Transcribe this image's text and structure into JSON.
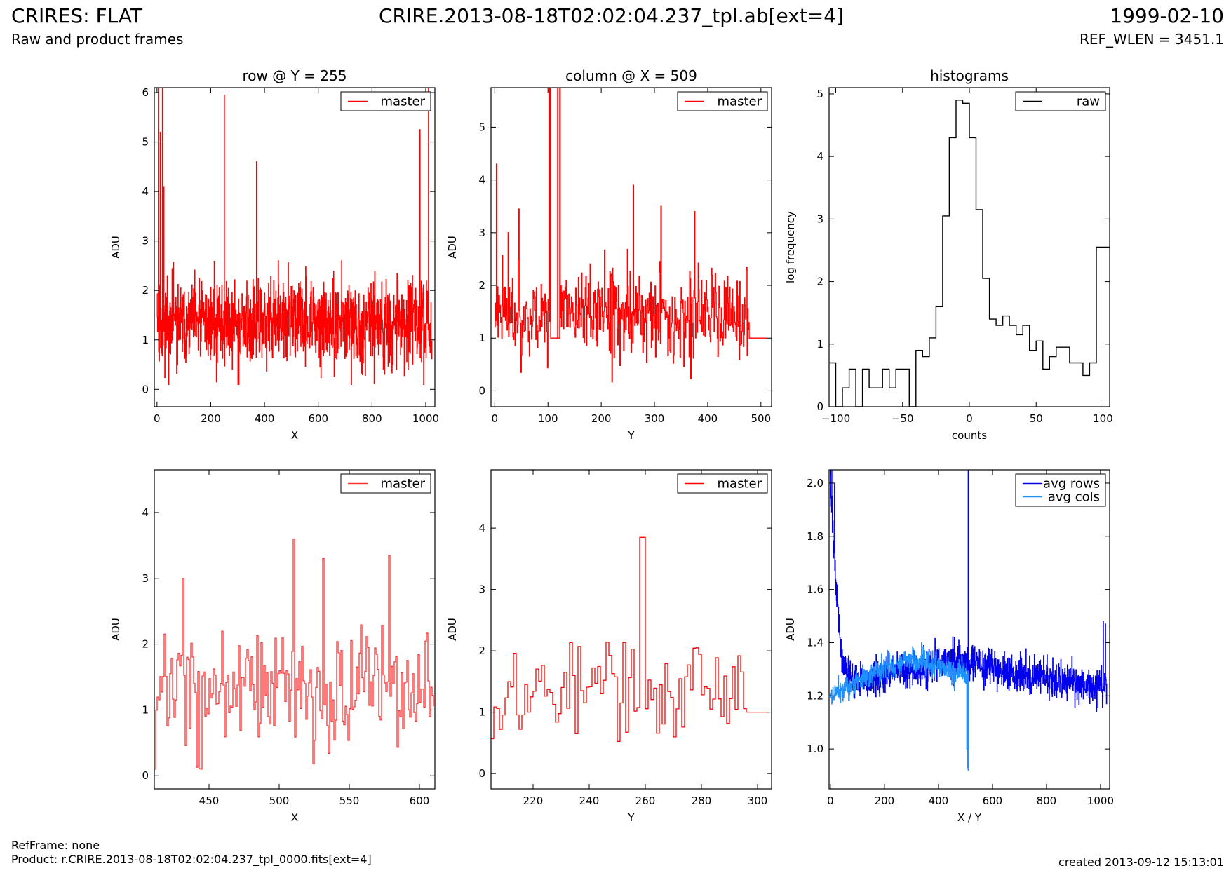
{
  "header": {
    "title_left": "CRIRES: FLAT",
    "title_center": "CRIRE.2013-08-18T02:02:04.237_tpl.ab[ext=4]",
    "title_right": "1999-02-10",
    "subtitle_left": "Raw and product frames",
    "subtitle_right": "REF_WLEN = 3451.1"
  },
  "footer": {
    "refframe": "RefFrame: none",
    "product": "Product: r.CRIRE.2013-08-18T02:02:04.237_tpl_0000.fits[ext=4]",
    "created": "created 2013-09-12 15:13:01"
  },
  "colors": {
    "red": "#ff0000",
    "dark_blue": "#0000ee",
    "light_blue": "#1e90ff",
    "black": "#000000"
  },
  "chart_data": [
    {
      "id": "p1",
      "type": "line",
      "title": "row @ Y = 255",
      "xlabel": "X",
      "ylabel": "ADU",
      "xlim": [
        -10,
        1034
      ],
      "ylim": [
        -0.35,
        6.1
      ],
      "xticks": [
        0,
        200,
        400,
        600,
        800,
        1000
      ],
      "yticks": [
        0,
        1,
        2,
        3,
        4,
        5,
        6
      ],
      "legend": "top-right",
      "series": [
        {
          "name": "master",
          "color": "#ff0000",
          "gen": "noise",
          "n": 1024,
          "x0": 0,
          "dx": 1,
          "base": 1.35,
          "amp": 0.85,
          "min": 0.1,
          "max": 2.6,
          "seed": 11,
          "spikes": [
            [
              5,
              6.1
            ],
            [
              12,
              5.2
            ],
            [
              20,
              6.1
            ],
            [
              25,
              4.1
            ],
            [
              250,
              5.95
            ],
            [
              370,
              4.6
            ],
            [
              978,
              5.25
            ],
            [
              1010,
              6.1
            ]
          ]
        }
      ]
    },
    {
      "id": "p2",
      "type": "line",
      "title": "column @ X = 509",
      "xlabel": "Y",
      "ylabel": "ADU",
      "xlim": [
        -7,
        520
      ],
      "ylim": [
        -0.3,
        5.75
      ],
      "xticks": [
        0,
        100,
        200,
        300,
        400,
        500
      ],
      "yticks": [
        0,
        1,
        2,
        3,
        4,
        5
      ],
      "legend": "top-right",
      "series": [
        {
          "name": "master",
          "color": "#ff0000",
          "gen": "noise",
          "n": 512,
          "x0": 0,
          "dx": 1,
          "base": 1.45,
          "amp": 0.8,
          "min": 0.15,
          "max": 2.8,
          "seed": 23,
          "spikes": [
            [
              3,
              4.3
            ],
            [
              25,
              3.0
            ],
            [
              45,
              3.45
            ],
            [
              102,
              5.75
            ],
            [
              104,
              5.75
            ],
            [
              118,
              5.75
            ],
            [
              122,
              5.75
            ],
            [
              260,
              3.9
            ],
            [
              312,
              3.5
            ],
            [
              375,
              3.4
            ]
          ],
          "flat": [
            [
              104,
              122,
              1.0
            ],
            [
              478,
              512,
              1.0
            ]
          ]
        }
      ]
    },
    {
      "id": "p3",
      "type": "line",
      "title": "histograms",
      "xlabel": "counts",
      "ylabel": "log frequency",
      "xlim": [
        -105,
        105
      ],
      "ylim": [
        0,
        5.1
      ],
      "xticks": [
        -100,
        -50,
        0,
        50,
        100
      ],
      "yticks": [
        0,
        1,
        2,
        3,
        4,
        5
      ],
      "legend": "top-right",
      "series": [
        {
          "name": "raw",
          "color": "#000000",
          "gen": "steps",
          "edges": [
            -105,
            -100,
            -95,
            -90,
            -85,
            -80,
            -75,
            -70,
            -65,
            -60,
            -55,
            -50,
            -45,
            -40,
            -35,
            -30,
            -25,
            -20,
            -15,
            -10,
            -5,
            0,
            5,
            10,
            15,
            20,
            25,
            30,
            35,
            40,
            45,
            50,
            55,
            60,
            65,
            70,
            75,
            80,
            85,
            90,
            95,
            100,
            105
          ],
          "values": [
            0.7,
            0.0,
            0.3,
            0.6,
            0.0,
            0.6,
            0.3,
            0.3,
            0.6,
            0.3,
            0.6,
            0.6,
            0.0,
            0.9,
            0.8,
            1.1,
            1.6,
            3.05,
            4.3,
            4.9,
            4.85,
            4.3,
            3.15,
            2.05,
            1.4,
            1.3,
            1.45,
            1.3,
            1.15,
            1.3,
            0.9,
            1.05,
            0.6,
            0.8,
            0.95,
            0.95,
            0.7,
            0.7,
            0.5,
            0.7,
            2.55,
            2.55
          ]
        }
      ]
    },
    {
      "id": "p4",
      "type": "line",
      "xlabel": "X",
      "ylabel": "ADU",
      "xlim": [
        411,
        611
      ],
      "ylim": [
        -0.2,
        4.65
      ],
      "xticks": [
        450,
        500,
        550,
        600
      ],
      "yticks": [
        0,
        1,
        2,
        3,
        4
      ],
      "legend": "top-right",
      "series": [
        {
          "name": "master",
          "color": "#ff3333",
          "gen": "noise",
          "n": 200,
          "x0": 411,
          "dx": 1,
          "base": 1.3,
          "amp": 0.85,
          "min": 0.1,
          "max": 2.5,
          "seed": 37,
          "spikes": [
            [
              431,
              3.0
            ],
            [
              510,
              3.6
            ],
            [
              531,
              3.3
            ],
            [
              578,
              3.35
            ]
          ]
        }
      ]
    },
    {
      "id": "p5",
      "type": "line",
      "xlabel": "Y",
      "ylabel": "ADU",
      "xlim": [
        205,
        305
      ],
      "ylim": [
        -0.25,
        4.95
      ],
      "xticks": [
        220,
        240,
        260,
        280,
        300
      ],
      "yticks": [
        0,
        1,
        2,
        3,
        4
      ],
      "legend": "top-right",
      "series": [
        {
          "name": "master",
          "color": "#ff0000",
          "gen": "noise",
          "n": 100,
          "x0": 205,
          "dx": 1,
          "base": 1.35,
          "amp": 0.8,
          "min": 0.2,
          "max": 2.7,
          "seed": 53,
          "spikes": [
            [
              258,
              3.85
            ],
            [
              259,
              3.85
            ]
          ],
          "flat": [
            [
              296,
              305,
              1.0
            ]
          ]
        }
      ]
    },
    {
      "id": "p6",
      "type": "line",
      "xlabel": "X / Y",
      "ylabel": "ADU",
      "xlim": [
        -5,
        1034
      ],
      "ylim": [
        0.85,
        2.05
      ],
      "xticks": [
        0,
        200,
        400,
        600,
        800,
        1000
      ],
      "yticks": [
        1.0,
        1.2,
        1.4,
        1.6,
        1.8,
        2.0
      ],
      "legend": "top-right",
      "series": [
        {
          "name": "avg rows",
          "color": "#0000ee",
          "gen": "noise",
          "n": 1024,
          "x0": 0,
          "dx": 1,
          "base": 1.26,
          "amp": 0.065,
          "min": 1.05,
          "max": 1.5,
          "seed": 71,
          "ramp": [
            [
              0,
              1.95
            ],
            [
              40,
              1.33
            ],
            [
              90,
              1.25
            ],
            [
              300,
              1.3
            ],
            [
              480,
              1.33
            ],
            [
              600,
              1.3
            ],
            [
              1024,
              1.23
            ]
          ],
          "spikes": [
            [
              2,
              2.05
            ],
            [
              8,
              2.05
            ],
            [
              15,
              2.0
            ],
            [
              510,
              2.05
            ],
            [
              1010,
              1.48
            ],
            [
              1018,
              1.47
            ]
          ]
        },
        {
          "name": "avg cols",
          "color": "#1e90ff",
          "gen": "noise",
          "n": 512,
          "x0": 0,
          "dx": 1,
          "base": 1.22,
          "amp": 0.045,
          "min": 1.08,
          "max": 1.5,
          "seed": 89,
          "ramp": [
            [
              0,
              1.2
            ],
            [
              150,
              1.28
            ],
            [
              300,
              1.34
            ],
            [
              450,
              1.29
            ],
            [
              495,
              1.28
            ],
            [
              512,
              1.26
            ]
          ],
          "spikes": [
            [
              505,
              1.0
            ],
            [
              508,
              0.93
            ],
            [
              510,
              0.92
            ]
          ]
        }
      ]
    }
  ]
}
